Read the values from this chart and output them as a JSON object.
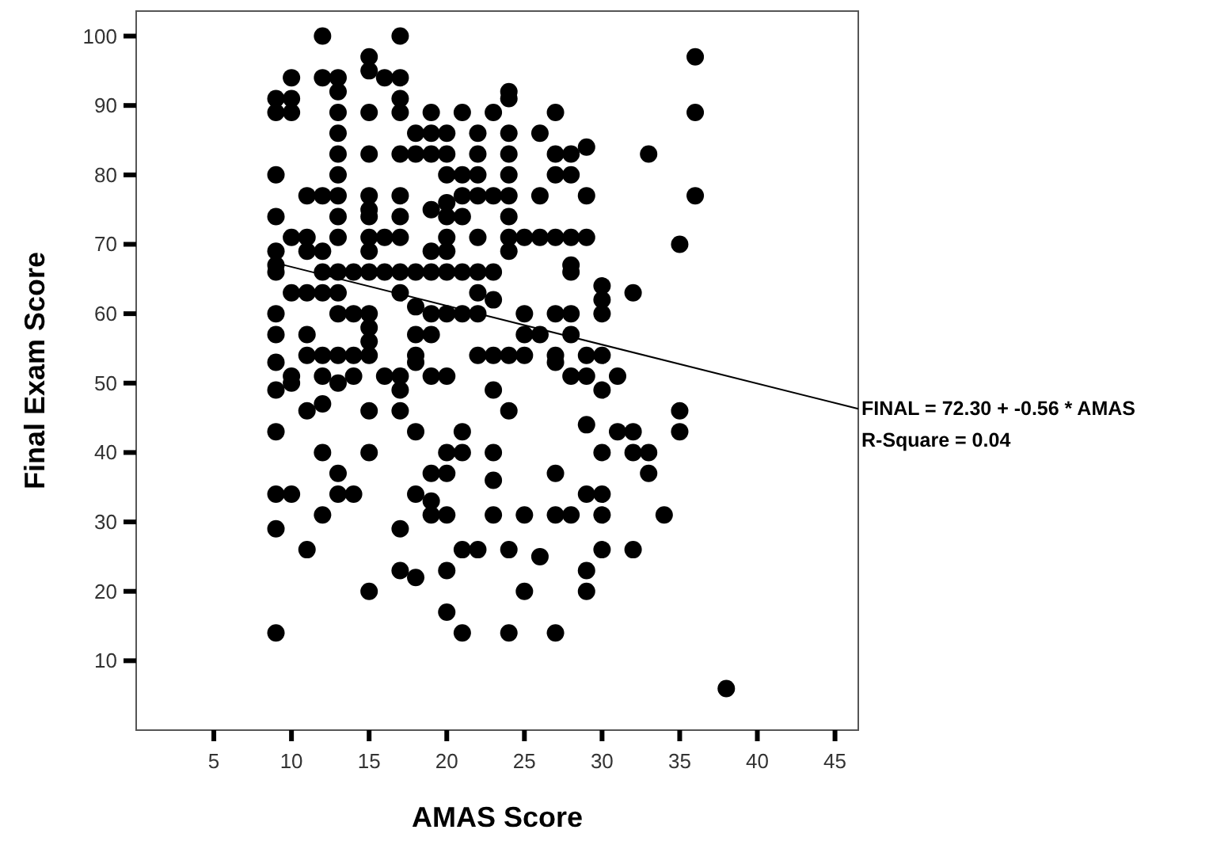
{
  "chart_data": {
    "type": "scatter",
    "xlabel": "AMAS Score",
    "ylabel": "Final Exam Score",
    "xlim": [
      0,
      46.5
    ],
    "ylim": [
      0,
      103.6
    ],
    "xticks": [
      5,
      10,
      15,
      20,
      25,
      30,
      35,
      40,
      45
    ],
    "yticks": [
      10,
      20,
      30,
      40,
      50,
      60,
      70,
      80,
      90,
      100
    ],
    "annotations": [
      "FINAL = 72.30 + -0.56 * AMAS",
      "R-Square = 0.04"
    ],
    "series": [
      {
        "marker": "circle",
        "color": "#000000",
        "x": [
          9,
          9,
          9,
          9,
          9,
          9,
          9,
          9,
          9,
          9,
          9,
          9,
          9,
          9,
          9,
          10,
          10,
          10,
          10,
          10,
          10,
          10,
          10,
          11,
          11,
          11,
          11,
          11,
          11,
          11,
          11,
          12,
          12,
          12,
          12,
          12,
          12,
          12,
          12,
          12,
          12,
          12,
          13,
          13,
          13,
          13,
          13,
          13,
          13,
          13,
          13,
          13,
          13,
          13,
          13,
          13,
          13,
          13,
          14,
          14,
          14,
          14,
          14,
          15,
          15,
          15,
          15,
          15,
          15,
          15,
          15,
          15,
          15,
          15,
          15,
          15,
          15,
          15,
          15,
          15,
          16,
          16,
          16,
          16,
          17,
          17,
          17,
          17,
          17,
          17,
          17,
          17,
          17,
          17,
          17,
          17,
          17,
          17,
          17,
          18,
          18,
          18,
          18,
          18,
          18,
          18,
          18,
          18,
          18,
          19,
          19,
          19,
          19,
          19,
          19,
          19,
          19,
          19,
          19,
          19,
          19,
          20,
          20,
          20,
          20,
          20,
          20,
          20,
          20,
          20,
          20,
          20,
          20,
          20,
          20,
          20,
          21,
          21,
          21,
          21,
          21,
          21,
          21,
          21,
          21,
          21,
          22,
          22,
          22,
          22,
          22,
          22,
          22,
          22,
          22,
          22,
          23,
          23,
          23,
          23,
          23,
          23,
          23,
          23,
          23,
          24,
          24,
          24,
          24,
          24,
          24,
          24,
          24,
          24,
          24,
          24,
          24,
          24,
          25,
          25,
          25,
          25,
          25,
          25,
          26,
          26,
          26,
          26,
          26,
          27,
          27,
          27,
          27,
          27,
          27,
          27,
          27,
          27,
          27,
          28,
          28,
          28,
          28,
          28,
          28,
          28,
          28,
          28,
          29,
          29,
          29,
          29,
          29,
          29,
          29,
          29,
          29,
          30,
          30,
          30,
          30,
          30,
          30,
          30,
          30,
          30,
          31,
          31,
          32,
          32,
          32,
          32,
          33,
          33,
          33,
          34,
          35,
          35,
          35,
          36,
          36,
          36,
          38
        ],
        "values": [
          91,
          89,
          80,
          74,
          69,
          67,
          66,
          60,
          57,
          53,
          49,
          43,
          34,
          29,
          14,
          94,
          91,
          89,
          71,
          63,
          51,
          50,
          34,
          77,
          71,
          69,
          63,
          57,
          54,
          46,
          26,
          100,
          94,
          77,
          69,
          66,
          63,
          54,
          51,
          47,
          40,
          31,
          94,
          92,
          89,
          86,
          83,
          80,
          77,
          74,
          71,
          66,
          63,
          60,
          54,
          50,
          37,
          34,
          66,
          60,
          54,
          51,
          34,
          97,
          95,
          89,
          83,
          77,
          75,
          74,
          71,
          69,
          66,
          60,
          58,
          56,
          54,
          46,
          40,
          20,
          94,
          71,
          66,
          51,
          100,
          94,
          91,
          89,
          83,
          77,
          74,
          71,
          66,
          63,
          51,
          49,
          46,
          29,
          23,
          86,
          83,
          66,
          61,
          57,
          54,
          53,
          43,
          34,
          22,
          89,
          86,
          83,
          75,
          69,
          66,
          60,
          57,
          51,
          37,
          33,
          31,
          86,
          83,
          80,
          76,
          74,
          71,
          69,
          66,
          60,
          51,
          40,
          37,
          31,
          23,
          17,
          89,
          80,
          77,
          74,
          66,
          60,
          43,
          40,
          26,
          14,
          86,
          83,
          80,
          77,
          71,
          66,
          63,
          60,
          54,
          26,
          89,
          77,
          66,
          62,
          54,
          49,
          40,
          36,
          31,
          92,
          91,
          86,
          83,
          80,
          77,
          74,
          71,
          69,
          54,
          46,
          26,
          14,
          71,
          60,
          57,
          54,
          31,
          20,
          86,
          77,
          71,
          57,
          25,
          89,
          83,
          80,
          71,
          60,
          54,
          53,
          37,
          31,
          14,
          83,
          80,
          71,
          67,
          66,
          60,
          57,
          51,
          31,
          84,
          77,
          71,
          54,
          51,
          44,
          34,
          23,
          20,
          64,
          62,
          60,
          54,
          49,
          40,
          34,
          31,
          26,
          51,
          43,
          63,
          43,
          40,
          26,
          83,
          40,
          37,
          31,
          70,
          46,
          43,
          97,
          89,
          77,
          6
        ]
      },
      {
        "type": "line",
        "marker": "none",
        "color": "#000000",
        "x": [
          9,
          46.5
        ],
        "values": [
          67.3,
          46.3
        ]
      }
    ]
  }
}
